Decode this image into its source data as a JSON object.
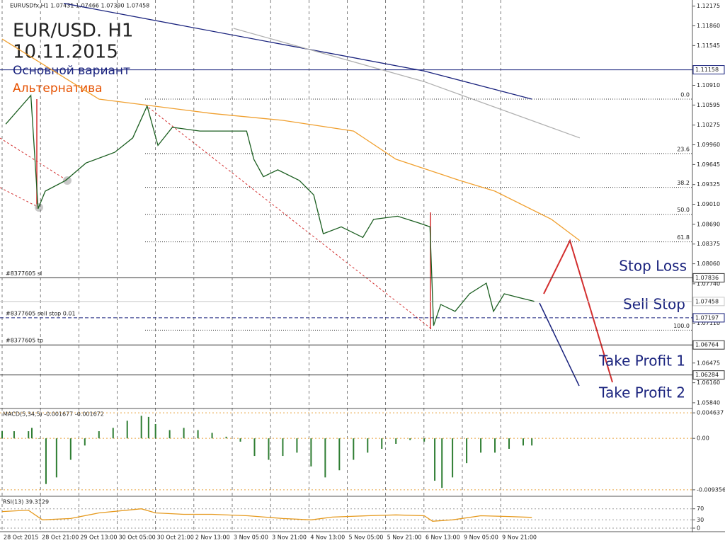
{
  "chart_data": [
    {
      "type": "line",
      "title": "EURUSDfx,H1  1.07431 1.07466 1.07390 1.07458",
      "annotations": [
        "EUR/USD. H1",
        "10.11.2015",
        "Основной вариант",
        "Альтернатива",
        "Stop Loss",
        "Sell Stop",
        "Take Profit 1",
        "Take Profit 2"
      ],
      "xlim": [
        0,
        288
      ],
      "xticks": [
        {
          "value": 0,
          "label": "28 Oct 2015"
        },
        {
          "value": 16,
          "label": "28 Oct 21:00"
        },
        {
          "value": 32,
          "label": "29 Oct 13:00"
        },
        {
          "value": 48,
          "label": "30 Oct 05:00"
        },
        {
          "value": 64,
          "label": "30 Oct 21:00"
        },
        {
          "value": 80,
          "label": "2 Nov 13:00"
        },
        {
          "value": 96,
          "label": "3 Nov 05:00"
        },
        {
          "value": 112,
          "label": "3 Nov 21:00"
        },
        {
          "value": 128,
          "label": "4 Nov 13:00"
        },
        {
          "value": 144,
          "label": "5 Nov 05:00"
        },
        {
          "value": 160,
          "label": "5 Nov 21:00"
        },
        {
          "value": 176,
          "label": "6 Nov 13:00"
        },
        {
          "value": 192,
          "label": "9 Nov 05:00"
        },
        {
          "value": 208,
          "label": "9 Nov 21:00"
        }
      ],
      "ylim": [
        1.0576,
        1.1225
      ],
      "yticks": [
        1.12175,
        {
          "value": 1.1186,
          "label": "1.11860"
        },
        1.11545,
        {
          "value": 1.1091,
          "label": "1.10910"
        },
        1.10595,
        1.10275,
        {
          "value": 1.0996,
          "label": "1.09960"
        },
        1.09645,
        1.09325,
        {
          "value": 1.0901,
          "label": "1.09010"
        },
        {
          "value": 1.0869,
          "label": "1.08690"
        },
        1.08375,
        {
          "value": 1.0806,
          "label": "1.08060"
        },
        {
          "value": 1.0774,
          "label": "1.07740"
        },
        {
          "value": 1.0711,
          "label": "1.07110"
        },
        1.06475,
        {
          "value": 1.0616,
          "label": "1.06160"
        },
        {
          "value": 1.0584,
          "label": "1.05840"
        }
      ],
      "grid": true,
      "series": [
        {
          "color": "#1b5e20",
          "x": [
            1.5,
            12,
            15,
            18,
            26.5,
            35,
            47,
            54.5,
            60.5,
            65,
            71,
            82.5,
            88.5,
            102,
            105,
            109,
            115,
            124,
            130,
            134,
            141.5,
            150.5,
            155,
            165,
            174,
            178.5,
            180,
            183,
            189,
            195,
            202,
            205,
            209.5,
            215.5,
            222
          ],
          "values": [
            1.1029,
            1.1075,
            1.0894,
            1.0922,
            1.0939,
            1.0967,
            1.0984,
            1.1007,
            1.1058,
            1.0995,
            1.1024,
            1.1018,
            1.1018,
            1.1018,
            1.0973,
            1.0945,
            1.0956,
            1.0939,
            1.0916,
            1.0854,
            1.0865,
            1.0848,
            1.0877,
            1.0882,
            1.0871,
            1.0865,
            1.0707,
            1.0741,
            1.073,
            1.0758,
            1.0775,
            1.073,
            1.0758,
            1.0752,
            1.0746
          ]
        },
        {
          "color": "#1a237e",
          "x": [
            25.7,
            176,
            221
          ],
          "values": [
            1.1222,
            1.1114,
            1.1069
          ]
        },
        {
          "color": "#b0b0b0",
          "x": [
            96.5,
            176,
            241
          ],
          "values": [
            1.1182,
            1.1097,
            1.1007
          ]
        },
        {
          "color": "#f0a030",
          "x": [
            0,
            40.4,
            87.6,
            117.1,
            146.6,
            164.3,
            190.9,
            205.6,
            229.2,
            241
          ],
          "values": [
            1.1165,
            1.1069,
            1.1046,
            1.1035,
            1.1018,
            1.0973,
            1.0939,
            1.0922,
            1.0877,
            1.0843
          ]
        }
      ],
      "levels": [
        {
          "price": 1.11158,
          "color": "#1a237e"
        },
        {
          "price": 1.07836,
          "color": "#333333",
          "tag": "#8377605 sl"
        },
        {
          "price": 1.07458,
          "color": "#c8c8c8"
        },
        {
          "price": 1.07197,
          "color": "#1a237e",
          "tag": "#8377605 sell stop 0.01"
        },
        {
          "price": 1.06764,
          "color": "#333333",
          "tag": "#8377605 tp"
        },
        {
          "price": 1.06284,
          "color": "#333333"
        }
      ],
      "fibo": [
        {
          "label": "0.0",
          "price": 1.1069
        },
        {
          "label": "23.6",
          "price": 1.0982
        },
        {
          "label": "38.2",
          "price": 1.0928
        },
        {
          "label": "50.0",
          "price": 1.0885
        },
        {
          "label": "61.8",
          "price": 1.0841
        },
        {
          "label": "100.0",
          "price": 1.07
        }
      ]
    },
    {
      "type": "bar",
      "title": "MACD(5,34,5) -0.001677 -0.001672",
      "xlim": [
        0,
        288
      ],
      "ylim": [
        -0.0104,
        0.0053
      ],
      "yticks": [
        0.004637,
        {
          "value": 0,
          "label": "0.00"
        },
        -0.009356
      ],
      "color": "#2e7d32",
      "x": [
        0,
        5,
        11,
        12.4,
        15.3,
        18.3,
        22.7,
        28.6,
        34.5,
        40.4,
        46.3,
        52.2,
        58.1,
        61.1,
        64,
        69.9,
        75.8,
        81.7,
        87.6,
        93.5,
        99.4,
        105.3,
        111.2,
        117.1,
        123,
        128.9,
        134.8,
        140.7,
        146.6,
        152.5,
        158.4,
        164.3,
        170.2,
        176.1,
        180.5,
        183.5,
        187.9,
        193.8,
        199.7,
        205.6,
        211.5,
        217.4,
        221
      ],
      "values": [
        0.0013,
        0.0013,
        0.0013,
        0.0019,
        0,
        -0.0083,
        -0.0071,
        -0.0039,
        -0.0013,
        0.0013,
        0.0019,
        0.0032,
        0.0041,
        0.0039,
        0.0026,
        0.0015,
        0.0019,
        0.0015,
        0.001,
        0.0003,
        -0.0006,
        -0.0032,
        -0.0039,
        -0.0032,
        -0.0026,
        -0.0051,
        -0.0071,
        -0.0058,
        -0.0039,
        -0.0026,
        -0.0019,
        -0.001,
        -0.0003,
        -0.0006,
        -0.0077,
        -0.009,
        -0.0071,
        -0.0045,
        -0.0026,
        -0.0026,
        -0.0019,
        -0.0013,
        -0.0013
      ]
    },
    {
      "type": "line",
      "title": "RSI(13) 39.3129",
      "xlim": [
        0,
        288
      ],
      "ylim": [
        0,
        100
      ],
      "yticks": [
        0,
        30,
        70
      ],
      "series": [
        {
          "color": "#e69a1e",
          "x": [
            0,
            10.9,
            16.8,
            28.6,
            40.4,
            58.1,
            64,
            75.8,
            87.6,
            102.4,
            117.1,
            128.9,
            137.8,
            152.5,
            164.3,
            176.1,
            179.6,
            187.9,
            199.7,
            211.5,
            221
          ],
          "values": [
            60,
            65,
            30,
            35,
            55,
            70,
            55,
            50,
            50,
            45,
            35,
            30,
            40,
            45,
            48,
            45,
            25,
            30,
            45,
            42,
            39
          ]
        }
      ]
    }
  ]
}
